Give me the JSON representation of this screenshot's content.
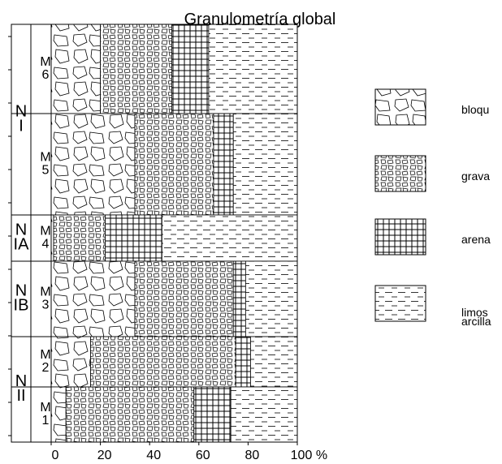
{
  "chart_data": {
    "type": "stacked-barh",
    "title": "Granulometría global",
    "x_label": "%",
    "categories": [
      "M6",
      "M5",
      "M4",
      "M3",
      "M2",
      "M1"
    ],
    "groups": [
      "NI",
      "NIA",
      "NIB",
      "NII"
    ],
    "series": [
      {
        "name": "bloqu",
        "values": [
          20,
          34,
          1,
          34,
          16,
          6
        ]
      },
      {
        "name": "grava",
        "values": [
          29,
          32,
          21,
          40,
          59,
          52
        ]
      },
      {
        "name": "arena",
        "values": [
          15,
          8,
          23,
          5,
          6,
          15
        ]
      },
      {
        "name": "limos arcilla",
        "values": [
          36,
          26,
          55,
          21,
          19,
          27
        ]
      }
    ],
    "xlim": [
      0,
      100
    ],
    "xticks": [
      0,
      20,
      40,
      60,
      80,
      100
    ]
  }
}
